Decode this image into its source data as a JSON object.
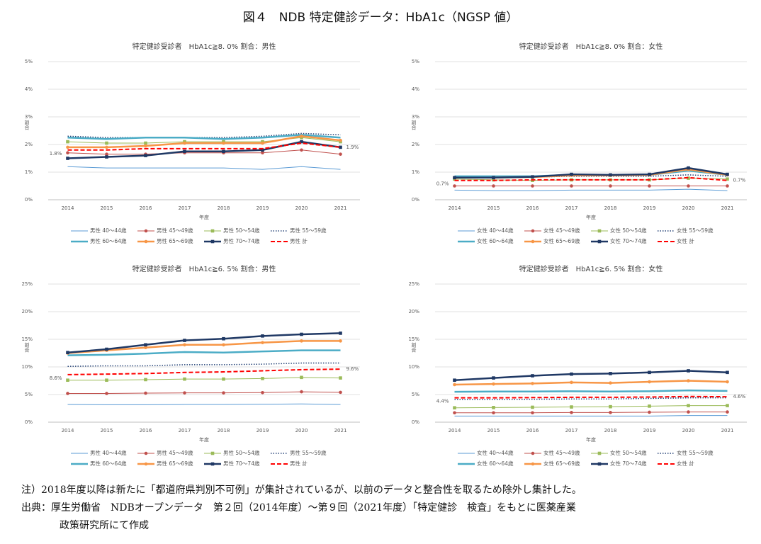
{
  "figure_title": "図４　NDB 特定健診データ：HbA1c（NGSP 値）",
  "notes": [
    "注）2018年度以降は新たに「都道府県判別不可例」が集計されているが、以前のデータと整合性を取るため除外し集計した。",
    "出典：厚生労働省　NDBオープンデータ　第２回（2014年度）～第９回（2021年度）「特定健診　検査」をもとに医薬産業",
    "政策研究所にて作成"
  ],
  "chart_data": [
    {
      "type": "line",
      "title": "特定健診受診者　HbA1c≧8. 0% 割合：男性",
      "x_label": "年度",
      "y_label": "割合",
      "categories": [
        "2014",
        "2015",
        "2016",
        "2017",
        "2018",
        "2019",
        "2020",
        "2021"
      ],
      "ylim": [
        0,
        5
      ],
      "grid": true,
      "yticks": [
        {
          "value": 0,
          "label": "0%"
        },
        {
          "value": 1,
          "label": "1%"
        },
        {
          "value": 2,
          "label": "2%"
        },
        {
          "value": 3,
          "label": "3%"
        },
        {
          "value": 4,
          "label": "4%"
        },
        {
          "value": 5,
          "label": "5%"
        }
      ],
      "series": [
        {
          "name": "男性 40～44歳",
          "color": "#5b9bd5",
          "line_width": 1,
          "values": [
            1.2,
            1.15,
            1.15,
            1.15,
            1.15,
            1.1,
            1.2,
            1.1
          ]
        },
        {
          "name": "男性 45～49歳",
          "color": "#c0504d",
          "line_width": 1,
          "marker": "circle",
          "values": [
            1.7,
            1.65,
            1.65,
            1.7,
            1.7,
            1.7,
            1.8,
            1.65
          ]
        },
        {
          "name": "男性 50～54歳",
          "color": "#9bbb59",
          "line_width": 1,
          "marker": "square",
          "values": [
            2.1,
            2.05,
            2.05,
            2.1,
            2.1,
            2.1,
            2.25,
            2.1
          ]
        },
        {
          "name": "男性 55～59歳",
          "color": "#264478",
          "line_width": 1.5,
          "style": "dotted",
          "values": [
            2.3,
            2.25,
            2.25,
            2.25,
            2.25,
            2.3,
            2.4,
            2.35
          ]
        },
        {
          "name": "男性 60～64歳",
          "color": "#4bacc6",
          "line_width": 2.5,
          "values": [
            2.25,
            2.2,
            2.25,
            2.25,
            2.2,
            2.25,
            2.35,
            2.25
          ]
        },
        {
          "name": "男性 65～69歳",
          "color": "#f79646",
          "line_width": 2.5,
          "marker": "circle",
          "values": [
            1.9,
            1.9,
            1.95,
            2.05,
            2.05,
            2.05,
            2.3,
            2.15
          ]
        },
        {
          "name": "男性 70～74歳",
          "color": "#1f3864",
          "line_width": 2.5,
          "marker": "square",
          "values": [
            1.5,
            1.55,
            1.6,
            1.75,
            1.75,
            1.8,
            2.1,
            1.9
          ]
        },
        {
          "name": "男性 計",
          "color": "#ff0000",
          "line_width": 2,
          "style": "dashed",
          "values": [
            1.8,
            1.8,
            1.85,
            1.85,
            1.85,
            1.85,
            2.05,
            1.9
          ],
          "value_labels": [
            "1.8%",
            null,
            null,
            null,
            null,
            null,
            null,
            "1.9%"
          ]
        }
      ]
    },
    {
      "type": "line",
      "title": "特定健診受診者　HbA1c≧8. 0% 割合：女性",
      "x_label": "年度",
      "y_label": "割合",
      "categories": [
        "2014",
        "2015",
        "2016",
        "2017",
        "2018",
        "2019",
        "2020",
        "2021"
      ],
      "ylim": [
        0,
        5
      ],
      "grid": true,
      "yticks": [
        {
          "value": 0,
          "label": "0%"
        },
        {
          "value": 1,
          "label": "1%"
        },
        {
          "value": 2,
          "label": "2%"
        },
        {
          "value": 3,
          "label": "3%"
        },
        {
          "value": 4,
          "label": "4%"
        },
        {
          "value": 5,
          "label": "5%"
        }
      ],
      "series": [
        {
          "name": "女性 40～44歳",
          "color": "#5b9bd5",
          "line_width": 1,
          "values": [
            0.35,
            0.33,
            0.33,
            0.35,
            0.35,
            0.35,
            0.38,
            0.33
          ]
        },
        {
          "name": "女性 45～49歳",
          "color": "#c0504d",
          "line_width": 1,
          "marker": "circle",
          "values": [
            0.5,
            0.5,
            0.5,
            0.5,
            0.5,
            0.5,
            0.5,
            0.5
          ]
        },
        {
          "name": "女性 50～54歳",
          "color": "#9bbb59",
          "line_width": 1,
          "marker": "square",
          "values": [
            0.75,
            0.72,
            0.7,
            0.72,
            0.72,
            0.72,
            0.78,
            0.75
          ]
        },
        {
          "name": "女性 55～59歳",
          "color": "#264478",
          "line_width": 1.5,
          "style": "dotted",
          "values": [
            0.85,
            0.82,
            0.82,
            0.85,
            0.85,
            0.85,
            0.9,
            0.85
          ]
        },
        {
          "name": "女性 60～64歳",
          "color": "#4bacc6",
          "line_width": 2.5,
          "values": [
            0.85,
            0.85,
            0.85,
            0.9,
            0.88,
            0.9,
            1.05,
            0.9
          ]
        },
        {
          "name": "女性 65～69歳",
          "color": "#f79646",
          "line_width": 2.5,
          "marker": "circle",
          "values": [
            0.8,
            0.8,
            0.82,
            0.88,
            0.88,
            0.9,
            1.1,
            0.9
          ]
        },
        {
          "name": "女性 70～74歳",
          "color": "#1f3864",
          "line_width": 2.5,
          "marker": "square",
          "values": [
            0.8,
            0.8,
            0.83,
            0.92,
            0.9,
            0.92,
            1.15,
            0.92
          ]
        },
        {
          "name": "女性 計",
          "color": "#ff0000",
          "line_width": 2,
          "style": "dashed",
          "values": [
            0.7,
            0.7,
            0.72,
            0.72,
            0.72,
            0.72,
            0.8,
            0.7
          ],
          "value_labels": [
            "0.7%",
            null,
            null,
            null,
            null,
            null,
            null,
            "0.7%"
          ]
        }
      ]
    },
    {
      "type": "line",
      "title": "特定健診受診者　HbA1c≧6. 5% 割合：男性",
      "x_label": "年度",
      "y_label": "割合",
      "categories": [
        "2014",
        "2015",
        "2016",
        "2017",
        "2018",
        "2019",
        "2020",
        "2021"
      ],
      "ylim": [
        0,
        25
      ],
      "grid": true,
      "yticks": [
        {
          "value": 0,
          "label": "0%"
        },
        {
          "value": 5,
          "label": "5%"
        },
        {
          "value": 10,
          "label": "10%"
        },
        {
          "value": 15,
          "label": "15%"
        },
        {
          "value": 20,
          "label": "20%"
        },
        {
          "value": 25,
          "label": "25%"
        }
      ],
      "series": [
        {
          "name": "男性 40～44歳",
          "color": "#5b9bd5",
          "line_width": 1,
          "values": [
            3.2,
            3.15,
            3.15,
            3.2,
            3.2,
            3.25,
            3.3,
            3.2
          ]
        },
        {
          "name": "男性 45～49歳",
          "color": "#c0504d",
          "line_width": 1,
          "marker": "circle",
          "values": [
            5.2,
            5.2,
            5.25,
            5.3,
            5.3,
            5.35,
            5.5,
            5.4
          ]
        },
        {
          "name": "男性 50～54歳",
          "color": "#9bbb59",
          "line_width": 1,
          "marker": "square",
          "values": [
            7.6,
            7.6,
            7.7,
            7.8,
            7.8,
            7.9,
            8.1,
            8.0
          ]
        },
        {
          "name": "男性 55～59歳",
          "color": "#264478",
          "line_width": 1.5,
          "style": "dotted",
          "values": [
            10.1,
            10.2,
            10.2,
            10.4,
            10.4,
            10.5,
            10.7,
            10.7
          ]
        },
        {
          "name": "男性 60～64歳",
          "color": "#4bacc6",
          "line_width": 2.5,
          "values": [
            12.1,
            12.2,
            12.4,
            12.7,
            12.6,
            12.8,
            13,
            13
          ]
        },
        {
          "name": "男性 65～69歳",
          "color": "#f79646",
          "line_width": 2.5,
          "marker": "circle",
          "values": [
            12.5,
            13,
            13.5,
            14,
            14,
            14.4,
            14.7,
            14.7
          ]
        },
        {
          "name": "男性 70～74歳",
          "color": "#1f3864",
          "line_width": 2.5,
          "marker": "square",
          "values": [
            12.6,
            13.2,
            14,
            14.8,
            15.1,
            15.6,
            15.9,
            16.1
          ]
        },
        {
          "name": "男性 計",
          "color": "#ff0000",
          "line_width": 2,
          "style": "dashed",
          "values": [
            8.6,
            8.7,
            8.8,
            9.0,
            9.1,
            9.3,
            9.5,
            9.6
          ],
          "value_labels": [
            "8.6%",
            null,
            null,
            null,
            null,
            null,
            null,
            "9.6%"
          ]
        }
      ]
    },
    {
      "type": "line",
      "title": "特定健診受診者　HbA1c≧6. 5% 割合：女性",
      "x_label": "年度",
      "y_label": "割合",
      "categories": [
        "2014",
        "2015",
        "2016",
        "2017",
        "2018",
        "2019",
        "2020",
        "2021"
      ],
      "ylim": [
        0,
        25
      ],
      "grid": true,
      "yticks": [
        {
          "value": 0,
          "label": "0%"
        },
        {
          "value": 5,
          "label": "5%"
        },
        {
          "value": 10,
          "label": "10%"
        },
        {
          "value": 15,
          "label": "15%"
        },
        {
          "value": 20,
          "label": "20%"
        },
        {
          "value": 25,
          "label": "25%"
        }
      ],
      "series": [
        {
          "name": "女性 40～44歳",
          "color": "#5b9bd5",
          "line_width": 1,
          "values": [
            1.1,
            1.1,
            1.1,
            1.1,
            1.1,
            1.1,
            1.2,
            1.2
          ]
        },
        {
          "name": "女性 45～49歳",
          "color": "#c0504d",
          "line_width": 1,
          "marker": "circle",
          "values": [
            1.7,
            1.7,
            1.7,
            1.75,
            1.75,
            1.8,
            1.85,
            1.85
          ]
        },
        {
          "name": "女性 50～54歳",
          "color": "#9bbb59",
          "line_width": 1,
          "marker": "square",
          "values": [
            2.6,
            2.65,
            2.7,
            2.75,
            2.8,
            2.9,
            3,
            3
          ]
        },
        {
          "name": "女性 55～59歳",
          "color": "#264478",
          "line_width": 1.5,
          "style": "dotted",
          "values": [
            4.1,
            4.1,
            4.15,
            4.2,
            4.2,
            4.3,
            4.4,
            4.4
          ]
        },
        {
          "name": "女性 60～64歳",
          "color": "#4bacc6",
          "line_width": 2.5,
          "values": [
            5.5,
            5.55,
            5.55,
            5.6,
            5.55,
            5.6,
            5.75,
            5.65
          ]
        },
        {
          "name": "女性 65～69歳",
          "color": "#f79646",
          "line_width": 2.5,
          "marker": "circle",
          "values": [
            6.8,
            6.9,
            7.0,
            7.2,
            7.1,
            7.3,
            7.5,
            7.3
          ]
        },
        {
          "name": "女性 70～74歳",
          "color": "#1f3864",
          "line_width": 2.5,
          "marker": "square",
          "values": [
            7.6,
            8,
            8.4,
            8.7,
            8.8,
            9,
            9.3,
            9
          ]
        },
        {
          "name": "女性 計",
          "color": "#ff0000",
          "line_width": 2,
          "style": "dashed",
          "values": [
            4.4,
            4.4,
            4.45,
            4.5,
            4.5,
            4.55,
            4.65,
            4.6
          ],
          "value_labels": [
            "4.4%",
            null,
            null,
            null,
            null,
            null,
            null,
            "4.6%"
          ]
        }
      ]
    }
  ]
}
